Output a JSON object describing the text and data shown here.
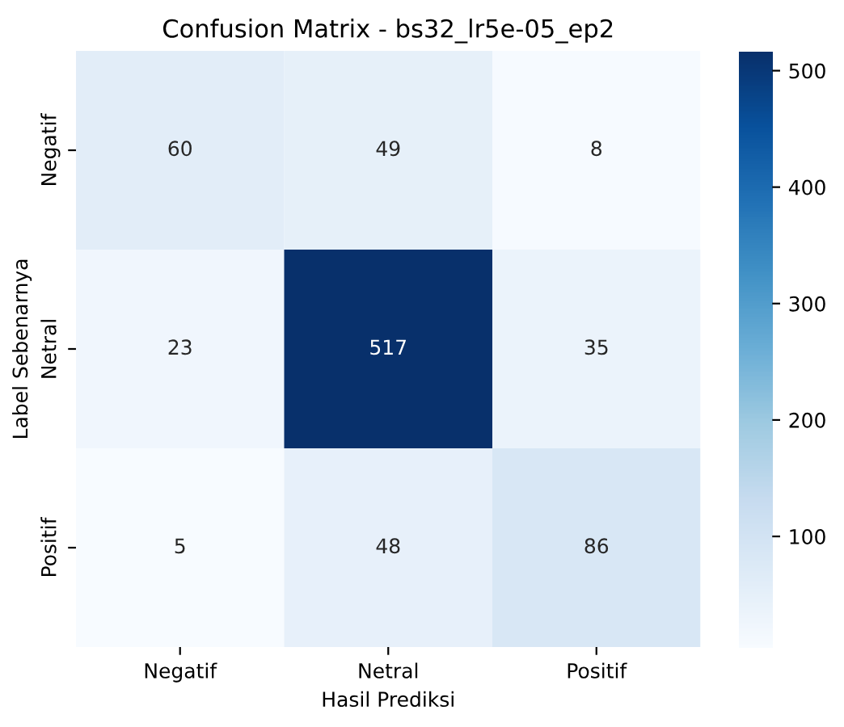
{
  "chart_data": {
    "type": "heatmap",
    "title": "Confusion Matrix - bs32_lr5e-05_ep2",
    "xlabel": "Hasil Prediksi",
    "ylabel": "Label Sebenarnya",
    "categories": [
      "Negatif",
      "Netral",
      "Positif"
    ],
    "y_categories": [
      "Negatif",
      "Netral",
      "Positif"
    ],
    "cells": [
      [
        60,
        49,
        8
      ],
      [
        23,
        517,
        35
      ],
      [
        5,
        48,
        86
      ]
    ],
    "data_labels": true,
    "clim": [
      5,
      517
    ],
    "cticks": [
      100,
      200,
      300,
      400,
      500
    ]
  }
}
